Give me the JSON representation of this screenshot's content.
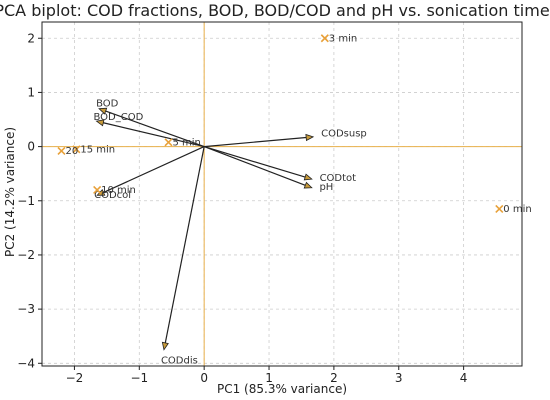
{
  "chart_data": {
    "type": "scatter",
    "title": "PCA biplot: COD fractions, BOD, BOD/COD and pH vs. sonication time",
    "xlabel": "PC1 (85.3% variance)",
    "ylabel": "PC2 (14.2% variance)",
    "xlim": [
      -2.5,
      4.9
    ],
    "ylim": [
      -4.05,
      2.3
    ],
    "xticks": [
      -2,
      -1,
      0,
      1,
      2,
      3,
      4
    ],
    "yticks": [
      -4,
      -3,
      -2,
      -1,
      0,
      1,
      2
    ],
    "grid": true,
    "colors": {
      "points": "#e8a13a",
      "zero_lines": "#e8b04a",
      "vectors": "#222222",
      "grid": "#cccccc"
    },
    "points": [
      {
        "label": "0 min",
        "x": 4.55,
        "y": -1.15
      },
      {
        "label": "3 min",
        "x": 1.86,
        "y": 2.0
      },
      {
        "label": "5 min",
        "x": -0.55,
        "y": 0.08
      },
      {
        "label": "10 min",
        "x": -1.65,
        "y": -0.8
      },
      {
        "label": "15 min",
        "x": -1.97,
        "y": -0.05
      },
      {
        "label": "20",
        "x": -2.2,
        "y": -0.08
      }
    ],
    "vectors": [
      {
        "label": "BOD",
        "x": -1.62,
        "y": 0.7
      },
      {
        "label": "BOD_COD",
        "x": -1.66,
        "y": 0.47
      },
      {
        "label": "CODsusp",
        "x": 1.68,
        "y": 0.18
      },
      {
        "label": "CODtot",
        "x": 1.66,
        "y": -0.6
      },
      {
        "label": "pH",
        "x": 1.66,
        "y": -0.76
      },
      {
        "label": "CODcol",
        "x": -1.65,
        "y": -0.9
      },
      {
        "label": "CODdis",
        "x": -0.62,
        "y": -3.75
      }
    ]
  }
}
